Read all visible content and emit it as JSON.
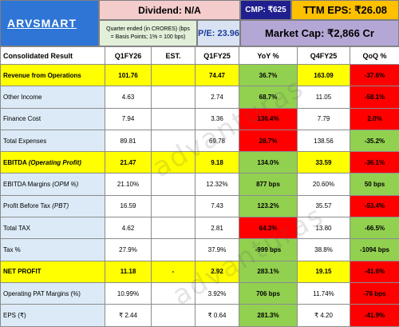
{
  "header": {
    "brand": "ARVSMART",
    "dividend": "Dividend: N/A",
    "cmp": "CMP: ₹625",
    "ttm_eps": "TTM EPS: ₹26.08",
    "note_line1": "Quarter ended (in CRORES) (bps",
    "note_line2": "= Basis Points; 1% = 100 bps)",
    "pe": "P/E: 23.96",
    "market_cap": "Market Cap: ₹2,866 Cr"
  },
  "table": {
    "columns": [
      "Consolidated Result",
      "Q1FY26",
      "EST.",
      "Q1FY25",
      "YoY %",
      "Q4FY25",
      "QoQ %"
    ],
    "rows": [
      {
        "label": "Revenue from Operations",
        "q1fy26": "101.76",
        "est": "",
        "q1fy25": "74.47",
        "yoy": "36.7%",
        "q4fy25": "163.09",
        "qoq": "-37.6%",
        "yoy_color": "green",
        "qoq_color": "red",
        "highlight": true
      },
      {
        "label": "Other Income",
        "q1fy26": "4.63",
        "est": "",
        "q1fy25": "2.74",
        "yoy": "68.7%",
        "q4fy25": "11.05",
        "qoq": "-58.1%",
        "yoy_color": "green",
        "qoq_color": "red",
        "highlight": false
      },
      {
        "label": "Finance Cost",
        "q1fy26": "7.94",
        "est": "",
        "q1fy25": "3.36",
        "yoy": "136.4%",
        "q4fy25": "7.79",
        "qoq": "2.0%",
        "yoy_color": "red",
        "qoq_color": "red",
        "highlight": false
      },
      {
        "label": "Total Expenses",
        "q1fy26": "89.81",
        "est": "",
        "q1fy25": "69.78",
        "yoy": "28.7%",
        "q4fy25": "138.56",
        "qoq": "-35.2%",
        "yoy_color": "red",
        "qoq_color": "green",
        "highlight": false
      },
      {
        "label": "EBITDA (Operating Profit)",
        "q1fy26": "21.47",
        "est": "",
        "q1fy25": "9.18",
        "yoy": "134.0%",
        "q4fy25": "33.59",
        "qoq": "-36.1%",
        "yoy_color": "green",
        "qoq_color": "red",
        "highlight": true
      },
      {
        "label": "EBITDA Margins (OPM %)",
        "q1fy26": "21.10%",
        "est": "",
        "q1fy25": "12.32%",
        "yoy": "877 bps",
        "q4fy25": "20.60%",
        "qoq": "50 bps",
        "yoy_color": "green",
        "qoq_color": "green",
        "highlight": false
      },
      {
        "label": "Profit Before Tax (PBT)",
        "q1fy26": "16.59",
        "est": "",
        "q1fy25": "7.43",
        "yoy": "123.2%",
        "q4fy25": "35.57",
        "qoq": "-53.4%",
        "yoy_color": "green",
        "qoq_color": "red",
        "highlight": false
      },
      {
        "label": "Total TAX",
        "q1fy26": "4.62",
        "est": "",
        "q1fy25": "2.81",
        "yoy": "64.3%",
        "q4fy25": "13.80",
        "qoq": "-66.5%",
        "yoy_color": "red",
        "qoq_color": "green",
        "highlight": false
      },
      {
        "label": "Tax %",
        "q1fy26": "27.9%",
        "est": "",
        "q1fy25": "37.9%",
        "yoy": "-999 bps",
        "q4fy25": "38.8%",
        "qoq": "-1094 bps",
        "yoy_color": "green",
        "qoq_color": "green",
        "highlight": false
      },
      {
        "label": "NET PROFIT",
        "q1fy26": "11.18",
        "est": "-",
        "q1fy25": "2.92",
        "yoy": "283.1%",
        "q4fy25": "19.15",
        "qoq": "-41.6%",
        "yoy_color": "green",
        "qoq_color": "red",
        "highlight": true
      },
      {
        "label": "Operating PAT Margins (%)",
        "q1fy26": "10.99%",
        "est": "",
        "q1fy25": "3.92%",
        "yoy": "706 bps",
        "q4fy25": "11.74%",
        "qoq": "-76 bps",
        "yoy_color": "green",
        "qoq_color": "red",
        "highlight": false
      },
      {
        "label": "EPS (₹)",
        "q1fy26": "₹ 2.44",
        "est": "",
        "q1fy25": "₹ 0.64",
        "yoy": "281.3%",
        "q4fy25": "₹ 4.20",
        "qoq": "-41.9%",
        "yoy_color": "green",
        "qoq_color": "red",
        "highlight": false
      }
    ]
  },
  "watermark": "advanturas",
  "colors": {
    "green": "#92d050",
    "red": "#ff0000",
    "highlight": "#ffff00",
    "brand_bg": "#2e75d6"
  }
}
